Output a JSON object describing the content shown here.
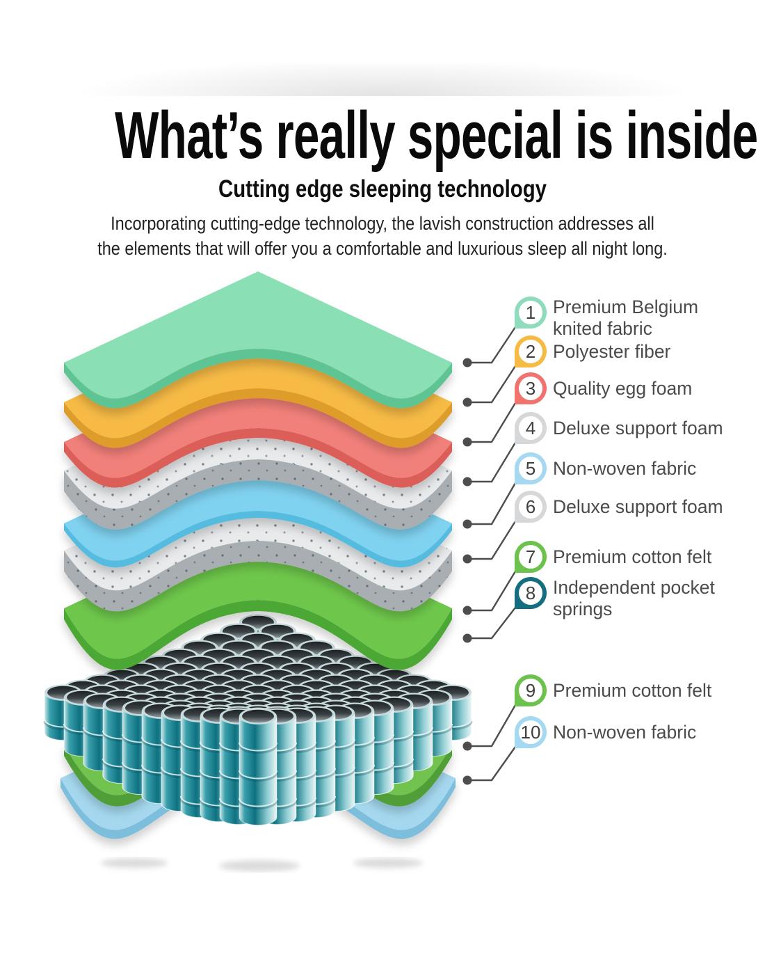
{
  "header": {
    "title": "What’s really special is inside",
    "subtitle": "Cutting edge sleeping technology",
    "description": {
      "lines": [
        "Incorporating cutting-edge technology, the lavish construction addresses all",
        "the elements that will offer you a comfortable and luxurious sleep all night long."
      ]
    }
  },
  "legend": {
    "items": [
      {
        "num": "1",
        "lines": [
          "Premium Belgium",
          "knited fabric"
        ],
        "pin_color": "#8EDCBC"
      },
      {
        "num": "2",
        "lines": [
          "Polyester fiber"
        ],
        "pin_color": "#F5BB45"
      },
      {
        "num": "3",
        "lines": [
          "Quality egg foam"
        ],
        "pin_color": "#F0736E"
      },
      {
        "num": "4",
        "lines": [
          "Deluxe support foam"
        ],
        "pin_color": "#D5D7D9"
      },
      {
        "num": "5",
        "lines": [
          "Non-woven fabric"
        ],
        "pin_color": "#A4D9F1"
      },
      {
        "num": "6",
        "lines": [
          "Deluxe support foam"
        ],
        "pin_color": "#D5D7D9"
      },
      {
        "num": "7",
        "lines": [
          "Premium cotton felt"
        ],
        "pin_color": "#6CC24D"
      },
      {
        "num": "8",
        "lines": [
          "Independent pocket",
          "springs"
        ],
        "pin_color": "#146E80"
      },
      {
        "num": "9",
        "lines": [
          "Premium cotton felt"
        ],
        "pin_color": "#6CC24D"
      },
      {
        "num": "10",
        "lines": [
          "Non-woven fabric"
        ],
        "pin_color": "#A4D9F1"
      }
    ]
  },
  "illustration": {
    "sheet_colors": {
      "knitted_fabric": {
        "top": "#8BDFB5",
        "side": "#5EC493"
      },
      "polyester_fiber": {
        "top": "#F6BA45",
        "side": "#DE9D2B"
      },
      "egg_foam": {
        "top": "#F2807A",
        "side": "#DB5F59"
      },
      "support_foam": {
        "top": "#E8EAEC",
        "side": "#A9AEB3"
      },
      "non_woven_fabric": {
        "top": "#7FD2F0",
        "side": "#55BCE0"
      },
      "cotton_felt": {
        "top": "#6EC74B",
        "side": "#4CA834"
      },
      "bottom_cotton_felt": {
        "top": "#72C24F",
        "side": "#4F9E37"
      },
      "bottom_non_woven": {
        "top": "#A5D8EF",
        "side": "#7BBEDB"
      }
    },
    "spring_colors": {
      "light": "#CFE9EA",
      "mid": "#0D7180",
      "accent": "#3BA0AC",
      "rim": "#C9DADC",
      "inner_dark": "#1D2123",
      "inner_light": "#8D979B"
    },
    "foam_dot_color": "#7E858B",
    "connector_color": "#4D4D4D",
    "number_text_color": "#3F3F3F"
  }
}
